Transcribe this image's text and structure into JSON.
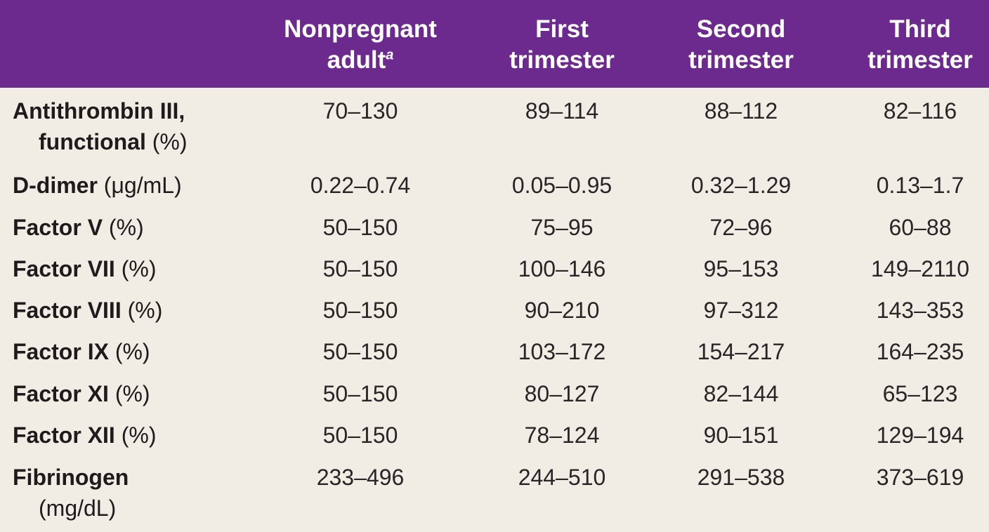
{
  "header": {
    "col1_line1": "Nonpregnant",
    "col1_line2": "adult",
    "col1_footnote": "a",
    "col2_line1": "First",
    "col2_line2": "trimester",
    "col3_line1": "Second",
    "col3_line2": "trimester",
    "col4_line1": "Third",
    "col4_line2": "trimester"
  },
  "rows": [
    {
      "name": "Antithrombin III,",
      "name2": "functional",
      "unit": "(%)",
      "values": [
        "70–130",
        "89–114",
        "88–112",
        "82–116"
      ]
    },
    {
      "name": "D-dimer",
      "unit": "(μg/mL)",
      "values": [
        "0.22–0.74",
        "0.05–0.95",
        "0.32–1.29",
        "0.13–1.7"
      ]
    },
    {
      "name": "Factor V",
      "unit": "(%)",
      "values": [
        "50–150",
        "75–95",
        "72–96",
        "60–88"
      ]
    },
    {
      "name": "Factor VII",
      "unit": "(%)",
      "values": [
        "50–150",
        "100–146",
        "95–153",
        "149–2110"
      ]
    },
    {
      "name": "Factor VIII",
      "unit": "(%)",
      "values": [
        "50–150",
        "90–210",
        "97–312",
        "143–353"
      ]
    },
    {
      "name": "Factor IX",
      "unit": "(%)",
      "values": [
        "50–150",
        "103–172",
        "154–217",
        "164–235"
      ]
    },
    {
      "name": "Factor XI",
      "unit": "(%)",
      "values": [
        "50–150",
        "80–127",
        "82–144",
        "65–123"
      ]
    },
    {
      "name": "Factor XII",
      "unit": "(%)",
      "values": [
        "50–150",
        "78–124",
        "90–151",
        "129–194"
      ]
    },
    {
      "name": "Fibrinogen",
      "unit": "(mg/dL)",
      "values": [
        "233–496",
        "244–510",
        "291–538",
        "373–619"
      ]
    }
  ],
  "colors": {
    "header_bg": "#6d2a8e",
    "body_bg": "#f1ede4"
  }
}
